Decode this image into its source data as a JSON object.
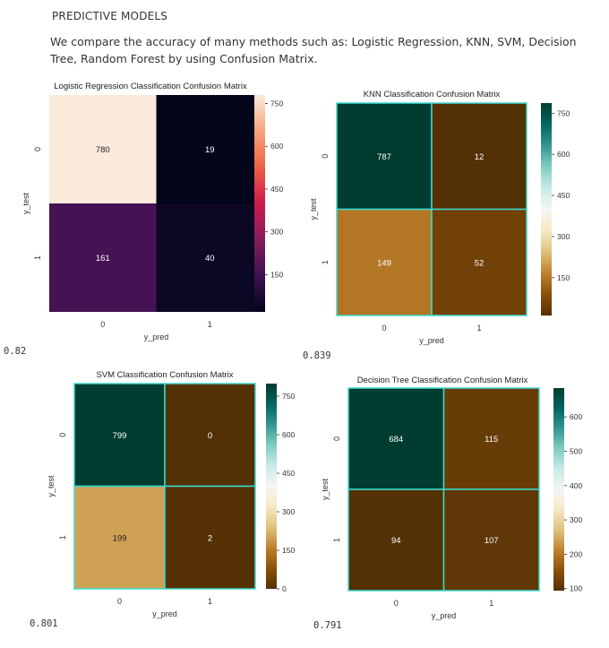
{
  "page": {
    "heading": "PREDICTIVE MODELS",
    "intro": "We compare the accuracy of many methods such as: Logistic Regression, KNN, SVM, Decision Tree, Random Forest by using Confusion Matrix."
  },
  "chart_data": [
    {
      "type": "heatmap",
      "title": "Logistic Regression Classification Confusion Matrix",
      "xlabel": "y_pred",
      "ylabel": "y_test",
      "x_ticks": [
        "0",
        "1"
      ],
      "y_ticks": [
        "0",
        "1"
      ],
      "values": [
        [
          780,
          19
        ],
        [
          161,
          40
        ]
      ],
      "colormap": "rocket",
      "colorbar_ticks": [
        150,
        300,
        450,
        600,
        750
      ],
      "colorbar_range": [
        19,
        780
      ],
      "accuracy": "0.82"
    },
    {
      "type": "heatmap",
      "title": "KNN Classification Confusion Matrix",
      "xlabel": "y_pred",
      "ylabel": "y_test",
      "x_ticks": [
        "0",
        "1"
      ],
      "y_ticks": [
        "0",
        "1"
      ],
      "values": [
        [
          787,
          12
        ],
        [
          149,
          52
        ]
      ],
      "colormap": "BrBG",
      "colorbar_ticks": [
        150,
        300,
        450,
        600,
        750
      ],
      "colorbar_range": [
        12,
        787
      ],
      "accuracy": "0.839"
    },
    {
      "type": "heatmap",
      "title": "SVM Classification Confusion Matrix",
      "xlabel": "y_pred",
      "ylabel": "y_test",
      "x_ticks": [
        "0",
        "1"
      ],
      "y_ticks": [
        "0",
        "1"
      ],
      "values": [
        [
          799,
          0
        ],
        [
          199,
          2
        ]
      ],
      "colormap": "BrBG",
      "colorbar_ticks": [
        0,
        150,
        300,
        450,
        600,
        750
      ],
      "colorbar_range": [
        0,
        799
      ],
      "accuracy": "0.801"
    },
    {
      "type": "heatmap",
      "title": "Decision Tree Classification Confusion Matrix",
      "xlabel": "y_pred",
      "ylabel": "y_test",
      "x_ticks": [
        "0",
        "1"
      ],
      "y_ticks": [
        "0",
        "1"
      ],
      "values": [
        [
          684,
          115
        ],
        [
          94,
          107
        ]
      ],
      "colormap": "BrBG",
      "colorbar_ticks": [
        100,
        200,
        300,
        400,
        500,
        600
      ],
      "colorbar_range": [
        94,
        684
      ],
      "accuracy": "0.791"
    }
  ]
}
